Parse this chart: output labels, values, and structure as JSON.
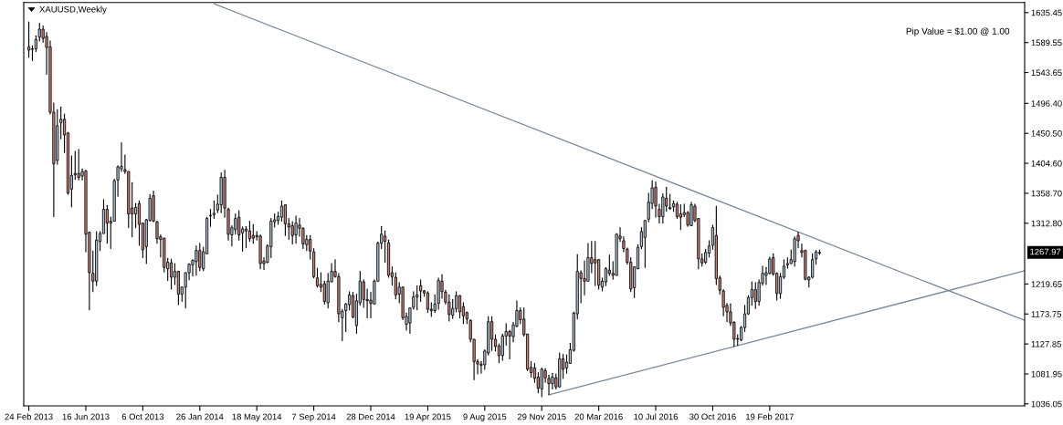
{
  "chart_data": {
    "type": "candlestick",
    "title": "XAUUSD,Weekly",
    "x": [
      "2013-02-24",
      "2013-03-03",
      "2013-03-10",
      "2013-03-17",
      "2013-03-24",
      "2013-03-31",
      "2013-04-07",
      "2013-04-14",
      "2013-04-21",
      "2013-04-28",
      "2013-05-05",
      "2013-05-12",
      "2013-05-19",
      "2013-05-26",
      "2013-06-02",
      "2013-06-09",
      "2013-06-16",
      "2013-06-23",
      "2013-06-30",
      "2013-07-07",
      "2013-07-14",
      "2013-07-21",
      "2013-07-28",
      "2013-08-04",
      "2013-08-11",
      "2013-08-18",
      "2013-08-25",
      "2013-09-01",
      "2013-09-08",
      "2013-09-15",
      "2013-09-22",
      "2013-09-29",
      "2013-10-06",
      "2013-10-13",
      "2013-10-20",
      "2013-10-27",
      "2013-11-03",
      "2013-11-10",
      "2013-11-17",
      "2013-11-24",
      "2013-12-01",
      "2013-12-08",
      "2013-12-15",
      "2013-12-22",
      "2013-12-29",
      "2014-01-05",
      "2014-01-12",
      "2014-01-19",
      "2014-01-26",
      "2014-02-02",
      "2014-02-09",
      "2014-02-16",
      "2014-02-23",
      "2014-03-02",
      "2014-03-09",
      "2014-03-16",
      "2014-03-23",
      "2014-03-30",
      "2014-04-06",
      "2014-04-13",
      "2014-04-20",
      "2014-04-27",
      "2014-05-04",
      "2014-05-11",
      "2014-05-18",
      "2014-05-25",
      "2014-06-01",
      "2014-06-08",
      "2014-06-15",
      "2014-06-22",
      "2014-06-29",
      "2014-07-06",
      "2014-07-13",
      "2014-07-20",
      "2014-07-27",
      "2014-08-03",
      "2014-08-10",
      "2014-08-17",
      "2014-08-24",
      "2014-08-31",
      "2014-09-07",
      "2014-09-14",
      "2014-09-21",
      "2014-09-28",
      "2014-10-05",
      "2014-10-12",
      "2014-10-19",
      "2014-10-26",
      "2014-11-02",
      "2014-11-09",
      "2014-11-16",
      "2014-11-23",
      "2014-11-30",
      "2014-12-07",
      "2014-12-14",
      "2014-12-21",
      "2014-12-28",
      "2015-01-04",
      "2015-01-11",
      "2015-01-18",
      "2015-01-25",
      "2015-02-01",
      "2015-02-08",
      "2015-02-15",
      "2015-02-22",
      "2015-03-01",
      "2015-03-08",
      "2015-03-15",
      "2015-03-22",
      "2015-03-29",
      "2015-04-05",
      "2015-04-12",
      "2015-04-19",
      "2015-04-26",
      "2015-05-03",
      "2015-05-10",
      "2015-05-17",
      "2015-05-24",
      "2015-05-31",
      "2015-06-07",
      "2015-06-14",
      "2015-06-21",
      "2015-06-28",
      "2015-07-05",
      "2015-07-12",
      "2015-07-19",
      "2015-07-26",
      "2015-08-02",
      "2015-08-09",
      "2015-08-16",
      "2015-08-23",
      "2015-08-30",
      "2015-09-06",
      "2015-09-13",
      "2015-09-20",
      "2015-09-27",
      "2015-10-04",
      "2015-10-11",
      "2015-10-18",
      "2015-10-25",
      "2015-11-01",
      "2015-11-08",
      "2015-11-15",
      "2015-11-22",
      "2015-11-29",
      "2015-12-06",
      "2015-12-13",
      "2015-12-20",
      "2015-12-27",
      "2016-01-03",
      "2016-01-10",
      "2016-01-17",
      "2016-01-24",
      "2016-01-31",
      "2016-02-07",
      "2016-02-14",
      "2016-02-21",
      "2016-02-28",
      "2016-03-06",
      "2016-03-13",
      "2016-03-20",
      "2016-03-27",
      "2016-04-03",
      "2016-04-10",
      "2016-04-17",
      "2016-04-24",
      "2016-05-01",
      "2016-05-08",
      "2016-05-15",
      "2016-05-22",
      "2016-05-29",
      "2016-06-05",
      "2016-06-12",
      "2016-06-19",
      "2016-06-26",
      "2016-07-03",
      "2016-07-10",
      "2016-07-17",
      "2016-07-24",
      "2016-07-31",
      "2016-08-07",
      "2016-08-14",
      "2016-08-21",
      "2016-08-28",
      "2016-09-04",
      "2016-09-11",
      "2016-09-18",
      "2016-09-25",
      "2016-10-02",
      "2016-10-09",
      "2016-10-16",
      "2016-10-23",
      "2016-10-30",
      "2016-11-06",
      "2016-11-13",
      "2016-11-20",
      "2016-11-27",
      "2016-12-04",
      "2016-12-11",
      "2016-12-18",
      "2016-12-25",
      "2017-01-01",
      "2017-01-08",
      "2017-01-15",
      "2017-01-22",
      "2017-01-29",
      "2017-02-05",
      "2017-02-12",
      "2017-02-19",
      "2017-02-26",
      "2017-03-05",
      "2017-03-12",
      "2017-03-19",
      "2017-03-26",
      "2017-04-02",
      "2017-04-09",
      "2017-04-16",
      "2017-04-23",
      "2017-04-30",
      "2017-05-07",
      "2017-05-14",
      "2017-05-21",
      "2017-05-28"
    ],
    "ohlc": [
      [
        1583,
        1621,
        1567,
        1578
      ],
      [
        1579,
        1585,
        1562,
        1580
      ],
      [
        1580,
        1600,
        1576,
        1594
      ],
      [
        1598,
        1619,
        1592,
        1610
      ],
      [
        1610,
        1615,
        1590,
        1596
      ],
      [
        1599,
        1605,
        1541,
        1582
      ],
      [
        1583,
        1592,
        1480,
        1483
      ],
      [
        1483,
        1497,
        1323,
        1404
      ],
      [
        1409,
        1487,
        1403,
        1462
      ],
      [
        1467,
        1491,
        1442,
        1472
      ],
      [
        1472,
        1480,
        1421,
        1448
      ],
      [
        1451,
        1452,
        1357,
        1359
      ],
      [
        1365,
        1416,
        1338,
        1386
      ],
      [
        1387,
        1423,
        1380,
        1389
      ],
      [
        1389,
        1426,
        1379,
        1383
      ],
      [
        1385,
        1396,
        1379,
        1392
      ],
      [
        1393,
        1394,
        1269,
        1296
      ],
      [
        1299,
        1299,
        1180,
        1237
      ],
      [
        1236,
        1270,
        1208,
        1224
      ],
      [
        1224,
        1300,
        1217,
        1287
      ],
      [
        1285,
        1300,
        1271,
        1297
      ],
      [
        1297,
        1349,
        1297,
        1334
      ],
      [
        1334,
        1340,
        1282,
        1313
      ],
      [
        1316,
        1322,
        1274,
        1313
      ],
      [
        1316,
        1380,
        1316,
        1378
      ],
      [
        1379,
        1401,
        1354,
        1399
      ],
      [
        1396,
        1436,
        1392,
        1400
      ],
      [
        1395,
        1417,
        1389,
        1392
      ],
      [
        1392,
        1392,
        1306,
        1327
      ],
      [
        1336,
        1375,
        1292,
        1327
      ],
      [
        1327,
        1343,
        1306,
        1337
      ],
      [
        1343,
        1347,
        1279,
        1311
      ],
      [
        1313,
        1313,
        1260,
        1272
      ],
      [
        1277,
        1319,
        1251,
        1318
      ],
      [
        1317,
        1357,
        1316,
        1351
      ],
      [
        1355,
        1362,
        1315,
        1316
      ],
      [
        1315,
        1316,
        1282,
        1289
      ],
      [
        1292,
        1295,
        1261,
        1288
      ],
      [
        1290,
        1290,
        1238,
        1245
      ],
      [
        1243,
        1259,
        1225,
        1253
      ],
      [
        1252,
        1258,
        1212,
        1230
      ],
      [
        1230,
        1251,
        1219,
        1239
      ],
      [
        1239,
        1239,
        1188,
        1204
      ],
      [
        1204,
        1215,
        1193,
        1215
      ],
      [
        1215,
        1237,
        1183,
        1237
      ],
      [
        1237,
        1251,
        1226,
        1250
      ],
      [
        1249,
        1257,
        1232,
        1256
      ],
      [
        1254,
        1278,
        1233,
        1271
      ],
      [
        1271,
        1282,
        1240,
        1245
      ],
      [
        1243,
        1276,
        1240,
        1269
      ],
      [
        1266,
        1322,
        1266,
        1320
      ],
      [
        1324,
        1334,
        1308,
        1325
      ],
      [
        1326,
        1347,
        1320,
        1328
      ],
      [
        1333,
        1356,
        1329,
        1342
      ],
      [
        1341,
        1390,
        1329,
        1383
      ],
      [
        1383,
        1394,
        1322,
        1336
      ],
      [
        1334,
        1336,
        1287,
        1296
      ],
      [
        1295,
        1309,
        1278,
        1306
      ],
      [
        1303,
        1327,
        1296,
        1320
      ],
      [
        1322,
        1332,
        1287,
        1295
      ],
      [
        1298,
        1307,
        1270,
        1304
      ],
      [
        1304,
        1308,
        1275,
        1301
      ],
      [
        1301,
        1316,
        1285,
        1289
      ],
      [
        1294,
        1311,
        1282,
        1290
      ],
      [
        1294,
        1300,
        1287,
        1292
      ],
      [
        1293,
        1295,
        1243,
        1251
      ],
      [
        1255,
        1260,
        1242,
        1251
      ],
      [
        1253,
        1280,
        1252,
        1278
      ],
      [
        1277,
        1320,
        1260,
        1316
      ],
      [
        1315,
        1327,
        1307,
        1318
      ],
      [
        1317,
        1330,
        1311,
        1323
      ],
      [
        1322,
        1347,
        1316,
        1339
      ],
      [
        1341,
        1341,
        1294,
        1312
      ],
      [
        1312,
        1320,
        1288,
        1307
      ],
      [
        1309,
        1315,
        1281,
        1294
      ],
      [
        1295,
        1324,
        1282,
        1313
      ],
      [
        1310,
        1320,
        1293,
        1305
      ],
      [
        1305,
        1306,
        1274,
        1281
      ],
      [
        1280,
        1294,
        1271,
        1288
      ],
      [
        1288,
        1294,
        1258,
        1270
      ],
      [
        1269,
        1274,
        1229,
        1231
      ],
      [
        1229,
        1244,
        1215,
        1217
      ],
      [
        1219,
        1237,
        1208,
        1215
      ],
      [
        1220,
        1224,
        1189,
        1193
      ],
      [
        1191,
        1236,
        1183,
        1224
      ],
      [
        1223,
        1251,
        1223,
        1239
      ],
      [
        1239,
        1257,
        1230,
        1231
      ],
      [
        1231,
        1236,
        1162,
        1174
      ],
      [
        1168,
        1181,
        1133,
        1178
      ],
      [
        1179,
        1190,
        1147,
        1189
      ],
      [
        1188,
        1208,
        1180,
        1203
      ],
      [
        1202,
        1207,
        1168,
        1169
      ],
      [
        1156,
        1204,
        1144,
        1194
      ],
      [
        1191,
        1239,
        1187,
        1224
      ],
      [
        1223,
        1226,
        1184,
        1196
      ],
      [
        1196,
        1212,
        1168,
        1194
      ],
      [
        1195,
        1207,
        1168,
        1190
      ],
      [
        1189,
        1226,
        1189,
        1224
      ],
      [
        1224,
        1284,
        1224,
        1282
      ],
      [
        1282,
        1308,
        1274,
        1296
      ],
      [
        1293,
        1301,
        1253,
        1285
      ],
      [
        1283,
        1287,
        1230,
        1233
      ],
      [
        1237,
        1246,
        1218,
        1231
      ],
      [
        1230,
        1237,
        1197,
        1203
      ],
      [
        1204,
        1222,
        1191,
        1215
      ],
      [
        1215,
        1215,
        1165,
        1168
      ],
      [
        1158,
        1175,
        1149,
        1170
      ],
      [
        1160,
        1183,
        1144,
        1183
      ],
      [
        1184,
        1208,
        1181,
        1200
      ],
      [
        1200,
        1217,
        1180,
        1203
      ],
      [
        1217,
        1226,
        1193,
        1209
      ],
      [
        1209,
        1210,
        1201,
        1206
      ],
      [
        1206,
        1208,
        1176,
        1181
      ],
      [
        1181,
        1191,
        1170,
        1179
      ],
      [
        1179,
        1203,
        1176,
        1189
      ],
      [
        1190,
        1229,
        1181,
        1225
      ],
      [
        1224,
        1234,
        1198,
        1208
      ],
      [
        1207,
        1210,
        1189,
        1192
      ],
      [
        1192,
        1203,
        1163,
        1173
      ],
      [
        1172,
        1196,
        1167,
        1182
      ],
      [
        1182,
        1208,
        1177,
        1202
      ],
      [
        1202,
        1202,
        1168,
        1177
      ],
      [
        1185,
        1191,
        1159,
        1171
      ],
      [
        1176,
        1177,
        1159,
        1166
      ],
      [
        1164,
        1165,
        1131,
        1135
      ],
      [
        1135,
        1135,
        1073,
        1101
      ],
      [
        1101,
        1104,
        1082,
        1097
      ],
      [
        1097,
        1101,
        1083,
        1095
      ],
      [
        1096,
        1119,
        1089,
        1117
      ],
      [
        1114,
        1170,
        1111,
        1162
      ],
      [
        1162,
        1170,
        1118,
        1135
      ],
      [
        1135,
        1142,
        1117,
        1124
      ],
      [
        1125,
        1128,
        1099,
        1110
      ],
      [
        1110,
        1143,
        1103,
        1140
      ],
      [
        1140,
        1159,
        1126,
        1147
      ],
      [
        1147,
        1149,
        1105,
        1140
      ],
      [
        1139,
        1161,
        1131,
        1157
      ],
      [
        1155,
        1194,
        1154,
        1179
      ],
      [
        1179,
        1183,
        1159,
        1165
      ],
      [
        1166,
        1183,
        1140,
        1142
      ],
      [
        1143,
        1143,
        1087,
        1089
      ],
      [
        1092,
        1101,
        1077,
        1084
      ],
      [
        1091,
        1098,
        1069,
        1075
      ],
      [
        1077,
        1084,
        1053,
        1060
      ],
      [
        1059,
        1091,
        1047,
        1089
      ],
      [
        1087,
        1090,
        1069,
        1076
      ],
      [
        1075,
        1080,
        1050,
        1067
      ],
      [
        1067,
        1083,
        1059,
        1077
      ],
      [
        1076,
        1082,
        1059,
        1062
      ],
      [
        1062,
        1114,
        1062,
        1105
      ],
      [
        1105,
        1112,
        1075,
        1089
      ],
      [
        1091,
        1111,
        1083,
        1100
      ],
      [
        1098,
        1129,
        1098,
        1119
      ],
      [
        1118,
        1177,
        1117,
        1175
      ],
      [
        1174,
        1265,
        1166,
        1239
      ],
      [
        1237,
        1240,
        1191,
        1228
      ],
      [
        1228,
        1255,
        1203,
        1224
      ],
      [
        1224,
        1282,
        1224,
        1260
      ],
      [
        1260,
        1285,
        1237,
        1251
      ],
      [
        1257,
        1285,
        1217,
        1252
      ],
      [
        1257,
        1257,
        1212,
        1218
      ],
      [
        1215,
        1229,
        1209,
        1224
      ],
      [
        1223,
        1245,
        1217,
        1243
      ],
      [
        1241,
        1264,
        1233,
        1236
      ],
      [
        1236,
        1254,
        1227,
        1233
      ],
      [
        1233,
        1297,
        1233,
        1296
      ],
      [
        1293,
        1306,
        1285,
        1289
      ],
      [
        1286,
        1292,
        1269,
        1274
      ],
      [
        1273,
        1275,
        1250,
        1253
      ],
      [
        1253,
        1260,
        1208,
        1212
      ],
      [
        1214,
        1246,
        1199,
        1246
      ],
      [
        1243,
        1280,
        1243,
        1276
      ],
      [
        1277,
        1306,
        1274,
        1300
      ],
      [
        1291,
        1317,
        1245,
        1317
      ],
      [
        1319,
        1359,
        1315,
        1345
      ],
      [
        1343,
        1378,
        1335,
        1367
      ],
      [
        1368,
        1376,
        1322,
        1339
      ],
      [
        1334,
        1342,
        1313,
        1323
      ],
      [
        1323,
        1358,
        1313,
        1353
      ],
      [
        1351,
        1368,
        1331,
        1339
      ],
      [
        1337,
        1357,
        1334,
        1335
      ],
      [
        1338,
        1347,
        1331,
        1343
      ],
      [
        1342,
        1345,
        1320,
        1323
      ],
      [
        1327,
        1341,
        1303,
        1322
      ],
      [
        1326,
        1342,
        1323,
        1329
      ],
      [
        1329,
        1331,
        1308,
        1310
      ],
      [
        1309,
        1345,
        1309,
        1341
      ],
      [
        1339,
        1342,
        1315,
        1317
      ],
      [
        1320,
        1320,
        1243,
        1258
      ],
      [
        1258,
        1266,
        1247,
        1252
      ],
      [
        1253,
        1273,
        1251,
        1268
      ],
      [
        1267,
        1286,
        1261,
        1278
      ],
      [
        1279,
        1310,
        1273,
        1306
      ],
      [
        1294,
        1339,
        1219,
        1228
      ],
      [
        1229,
        1232,
        1204,
        1210
      ],
      [
        1209,
        1211,
        1171,
        1184
      ],
      [
        1187,
        1190,
        1162,
        1177
      ],
      [
        1177,
        1189,
        1156,
        1160
      ],
      [
        1161,
        1162,
        1124,
        1135
      ],
      [
        1135,
        1142,
        1126,
        1136
      ],
      [
        1134,
        1155,
        1133,
        1153
      ],
      [
        1153,
        1187,
        1147,
        1174
      ],
      [
        1174,
        1202,
        1173,
        1199
      ],
      [
        1199,
        1223,
        1187,
        1211
      ],
      [
        1211,
        1222,
        1182,
        1193
      ],
      [
        1193,
        1226,
        1187,
        1222
      ],
      [
        1221,
        1247,
        1218,
        1236
      ],
      [
        1233,
        1245,
        1219,
        1237
      ],
      [
        1236,
        1261,
        1235,
        1258
      ],
      [
        1260,
        1266,
        1233,
        1235
      ],
      [
        1236,
        1237,
        1195,
        1205
      ],
      [
        1205,
        1236,
        1198,
        1231
      ],
      [
        1230,
        1257,
        1228,
        1247
      ],
      [
        1249,
        1260,
        1244,
        1251
      ],
      [
        1251,
        1272,
        1251,
        1257
      ],
      [
        1254,
        1292,
        1247,
        1289
      ],
      [
        1294,
        1299,
        1275,
        1286
      ],
      [
        1271,
        1281,
        1261,
        1268
      ],
      [
        1271,
        1272,
        1226,
        1227
      ],
      [
        1226,
        1231,
        1215,
        1230
      ],
      [
        1230,
        1266,
        1229,
        1257
      ],
      [
        1258,
        1271,
        1250,
        1269
      ],
      [
        1267,
        1272,
        1265,
        1267.97
      ]
    ],
    "colors": [
      "#c8827b",
      "#b0bfcf",
      "#b0bfcf",
      "#b0bfcf",
      "#c8827b",
      "#c8827b",
      "#c8827b",
      "#c8827b",
      "#b0bfcf",
      "#b0bfcf",
      "#c8827b",
      "#c8827b",
      "#b0bfcf",
      "#b0bfcf",
      "#c8827b",
      "#b0bfcf",
      "#c8827b",
      "#c8827b",
      "#c8827b",
      "#b0bfcf",
      "#b0bfcf",
      "#b0bfcf",
      "#c8827b",
      "#c8827b",
      "#b0bfcf",
      "#b0bfcf",
      "#b0bfcf",
      "#c8827b",
      "#c8827b",
      "#c8827b",
      "#b0bfcf",
      "#c8827b",
      "#c8827b",
      "#b0bfcf",
      "#b0bfcf",
      "#c8827b",
      "#c8827b",
      "#c8827b",
      "#c8827b",
      "#b0bfcf",
      "#c8827b",
      "#b0bfcf",
      "#c8827b",
      "#b0bfcf",
      "#b0bfcf",
      "#b0bfcf",
      "#b0bfcf",
      "#b0bfcf",
      "#c8827b",
      "#b0bfcf",
      "#b0bfcf",
      "#b0bfcf",
      "#b0bfcf",
      "#b0bfcf",
      "#b0bfcf",
      "#c8827b",
      "#c8827b",
      "#b0bfcf",
      "#b0bfcf",
      "#c8827b",
      "#b0bfcf",
      "#c8827b",
      "#c8827b",
      "#c8827b",
      "#c8827b",
      "#c8827b",
      "#c8827b",
      "#b0bfcf",
      "#b0bfcf",
      "#b0bfcf",
      "#b0bfcf",
      "#b0bfcf",
      "#c8827b",
      "#c8827b",
      "#c8827b",
      "#b0bfcf",
      "#c8827b",
      "#c8827b",
      "#b0bfcf",
      "#c8827b",
      "#c8827b",
      "#c8827b",
      "#c8827b",
      "#c8827b",
      "#b0bfcf",
      "#b0bfcf",
      "#c8827b",
      "#c8827b",
      "#b0bfcf",
      "#b0bfcf",
      "#b0bfcf",
      "#c8827b",
      "#b0bfcf",
      "#b0bfcf",
      "#c8827b",
      "#c8827b",
      "#c8827b",
      "#b0bfcf",
      "#b0bfcf",
      "#b0bfcf",
      "#c8827b",
      "#c8827b",
      "#c8827b",
      "#c8827b",
      "#b0bfcf",
      "#c8827b",
      "#b0bfcf",
      "#b0bfcf",
      "#b0bfcf",
      "#b0bfcf",
      "#c8827b",
      "#c8827b",
      "#c8827b",
      "#c8827b",
      "#b0bfcf",
      "#b0bfcf",
      "#c8827b",
      "#c8827b",
      "#c8827b",
      "#b0bfcf",
      "#b0bfcf",
      "#c8827b",
      "#c8827b",
      "#c8827b",
      "#c8827b",
      "#c8827b",
      "#c8827b",
      "#c8827b",
      "#b0bfcf",
      "#b0bfcf",
      "#c8827b",
      "#c8827b",
      "#c8827b",
      "#b0bfcf",
      "#b0bfcf",
      "#c8827b",
      "#b0bfcf",
      "#b0bfcf",
      "#c8827b",
      "#c8827b",
      "#c8827b",
      "#c8827b",
      "#c8827b",
      "#c8827b",
      "#b0bfcf",
      "#c8827b",
      "#c8827b",
      "#b0bfcf",
      "#c8827b",
      "#b0bfcf",
      "#c8827b",
      "#b0bfcf",
      "#b0bfcf",
      "#b0bfcf",
      "#b0bfcf",
      "#c8827b",
      "#c8827b",
      "#b0bfcf",
      "#c8827b",
      "#c8827b",
      "#c8827b",
      "#b0bfcf",
      "#b0bfcf",
      "#c8827b",
      "#c8827b",
      "#b0bfcf",
      "#c8827b",
      "#c8827b",
      "#c8827b",
      "#c8827b",
      "#b0bfcf",
      "#b0bfcf",
      "#b0bfcf",
      "#b0bfcf",
      "#b0bfcf",
      "#b0bfcf",
      "#c8827b",
      "#c8827b",
      "#b0bfcf",
      "#c8827b",
      "#c8827b",
      "#b0bfcf",
      "#c8827b",
      "#c8827b",
      "#b0bfcf",
      "#c8827b",
      "#b0bfcf",
      "#c8827b",
      "#c8827b",
      "#c8827b",
      "#b0bfcf",
      "#b0bfcf",
      "#b0bfcf",
      "#c8827b",
      "#c8827b",
      "#c8827b",
      "#c8827b",
      "#c8827b",
      "#c8827b",
      "#b0bfcf",
      "#b0bfcf",
      "#b0bfcf",
      "#b0bfcf",
      "#b0bfcf",
      "#c8827b",
      "#b0bfcf",
      "#b0bfcf",
      "#b0bfcf",
      "#b0bfcf",
      "#c8827b",
      "#c8827b",
      "#b0bfcf",
      "#b0bfcf",
      "#b0bfcf",
      "#b0bfcf",
      "#b0bfcf",
      "#c8827b",
      "#c8827b",
      "#c8827b",
      "#b0bfcf",
      "#b0bfcf",
      "#b0bfcf",
      "#b0bfcf"
    ],
    "series": [
      {
        "type": "line",
        "x": [
          "2014-02-23",
          "2018-07-05"
        ],
        "values": [
          1649,
          1164
        ],
        "color": "#778899"
      },
      {
        "type": "line",
        "x": [
          "2015-12-13",
          "2018-07-05"
        ],
        "values": [
          1050,
          1240
        ],
        "color": "#778899"
      }
    ],
    "xlim": [
      "2013-02-14",
      "2018-07-05"
    ],
    "xticks": [
      {
        "value": "2013-02-24",
        "label": "24 Feb 2013"
      },
      {
        "value": "2013-06-16",
        "label": "16 Jun 2013"
      },
      {
        "value": "2013-10-06",
        "label": "6 Oct 2013"
      },
      {
        "value": "2014-01-26",
        "label": "26 Jan 2014"
      },
      {
        "value": "2014-05-18",
        "label": "18 May 2014"
      },
      {
        "value": "2014-09-07",
        "label": "7 Sep 2014"
      },
      {
        "value": "2014-12-28",
        "label": "28 Dec 2014"
      },
      {
        "value": "2015-04-19",
        "label": "19 Apr 2015"
      },
      {
        "value": "2015-08-09",
        "label": "9 Aug 2015"
      },
      {
        "value": "2015-11-29",
        "label": "29 Nov 2015"
      },
      {
        "value": "2016-03-20",
        "label": "20 Mar 2016"
      },
      {
        "value": "2016-07-10",
        "label": "10 Jul 2016"
      },
      {
        "value": "2016-10-30",
        "label": "30 Oct 2016"
      },
      {
        "value": "2017-02-19",
        "label": "19 Feb 2017"
      }
    ],
    "ylim": [
      1033,
      1651
    ],
    "yticks": [
      1036.05,
      1081.95,
      1127.85,
      1173.75,
      1219.65,
      {
        "value": 1312.8,
        "label": "1312.80"
      },
      {
        "value": 1358.7,
        "label": "1358.70"
      },
      {
        "value": 1404.6,
        "label": "1404.60"
      },
      {
        "value": 1450.5,
        "label": "1450.50"
      },
      {
        "value": 1496.4,
        "label": "1496.40"
      },
      1543.65,
      1589.55,
      1635.45
    ],
    "annotations": [
      "Pip Value = $1.00 @ 1.00",
      "1267.97"
    ]
  }
}
